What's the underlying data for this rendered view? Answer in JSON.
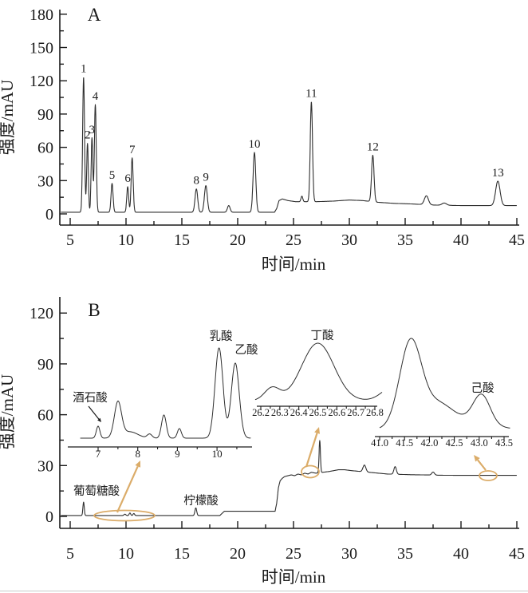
{
  "figure": {
    "background": "#ffffff",
    "trace_color": "#2f2f2f",
    "axis_color": "#1a1a1a",
    "annotation_color": "#dbac69",
    "black_arrow_color": "#1a1a1a"
  },
  "chart_data": [
    {
      "id": "panel-a",
      "type": "line",
      "panel_label": "A",
      "xlabel": "时间/min",
      "ylabel": "强度/mAU",
      "xlim": [
        4.07,
        45.2
      ],
      "ylim": [
        0,
        184
      ],
      "x_ticks": {
        "values": [
          5,
          10,
          15,
          20,
          25,
          30,
          35,
          40,
          45
        ],
        "labels": [
          "5",
          "10",
          "15",
          "20",
          "25",
          "30",
          "35",
          "40",
          "45"
        ],
        "minor_step": 2.5
      },
      "y_ticks": {
        "values": [
          0,
          30,
          60,
          90,
          120,
          150,
          180
        ],
        "labels": [
          "0",
          "30",
          "60",
          "90",
          "120",
          "150",
          "180"
        ],
        "minor_step": 15
      },
      "baseline": [
        [
          4,
          1.5
        ],
        [
          18.9,
          1.5
        ],
        [
          23.3,
          1.5
        ],
        [
          23.5,
          5
        ],
        [
          23.7,
          12
        ],
        [
          24.0,
          13.5
        ],
        [
          24.5,
          12
        ],
        [
          25.2,
          11
        ],
        [
          26.0,
          11
        ],
        [
          27.0,
          11
        ],
        [
          28.5,
          11.5
        ],
        [
          30.0,
          12.5
        ],
        [
          31.2,
          12
        ],
        [
          32.5,
          10.5
        ],
        [
          34,
          9.5
        ],
        [
          35.5,
          9
        ],
        [
          37.5,
          8
        ],
        [
          40,
          7.5
        ],
        [
          45,
          7.5
        ]
      ],
      "peaks": [
        {
          "t": 6.2,
          "h": 122,
          "w": 0.085,
          "label": "1"
        },
        {
          "t": 6.55,
          "h": 62,
          "w": 0.075,
          "label": "2"
        },
        {
          "t": 6.95,
          "h": 67,
          "w": 0.075,
          "label": "3"
        },
        {
          "t": 7.25,
          "h": 97,
          "w": 0.085,
          "label": "4"
        },
        {
          "t": 8.75,
          "h": 26,
          "w": 0.09,
          "label": "5"
        },
        {
          "t": 10.15,
          "h": 23,
          "w": 0.085,
          "label": "6"
        },
        {
          "t": 10.55,
          "h": 49,
          "w": 0.09,
          "label": "7"
        },
        {
          "t": 16.3,
          "h": 21,
          "w": 0.12,
          "label": "8"
        },
        {
          "t": 17.15,
          "h": 24,
          "w": 0.13,
          "label": "9"
        },
        {
          "t": 21.5,
          "h": 54,
          "w": 0.12,
          "label": "10"
        },
        {
          "t": 26.6,
          "h": 90,
          "w": 0.1,
          "label": "11"
        },
        {
          "t": 32.1,
          "h": 42,
          "w": 0.11,
          "label": "12"
        },
        {
          "t": 43.3,
          "h": 22,
          "w": 0.2,
          "label": "13"
        },
        {
          "t": 19.2,
          "h": 6,
          "w": 0.12
        },
        {
          "t": 25.75,
          "h": 5,
          "w": 0.08
        },
        {
          "t": 36.9,
          "h": 8,
          "w": 0.18
        },
        {
          "t": 38.5,
          "h": 2,
          "w": 0.2
        }
      ]
    },
    {
      "id": "panel-b",
      "type": "line",
      "panel_label": "B",
      "xlabel": "时间/min",
      "ylabel": "强度/mAU",
      "xlim": [
        4.07,
        45.2
      ],
      "ylim": [
        0,
        129
      ],
      "x_ticks": {
        "values": [
          5,
          10,
          15,
          20,
          25,
          30,
          35,
          40,
          45
        ],
        "labels": [
          "5",
          "10",
          "15",
          "20",
          "25",
          "30",
          "35",
          "40",
          "45"
        ],
        "minor_step": 2.5
      },
      "y_ticks": {
        "values": [
          0,
          30,
          60,
          90,
          120
        ],
        "labels": [
          "0",
          "30",
          "60",
          "90",
          "120"
        ],
        "minor_step": 15
      },
      "baseline": [
        [
          4,
          0.5
        ],
        [
          18.4,
          0.5
        ],
        [
          18.8,
          3
        ],
        [
          23.35,
          3
        ],
        [
          23.5,
          8
        ],
        [
          23.65,
          17
        ],
        [
          23.8,
          21
        ],
        [
          24.0,
          22.5
        ],
        [
          24.2,
          23.5
        ],
        [
          24.5,
          24
        ],
        [
          24.8,
          24.5
        ],
        [
          25.1,
          24
        ],
        [
          25.4,
          25
        ],
        [
          25.7,
          24.5
        ],
        [
          26.0,
          25.5
        ],
        [
          26.3,
          25
        ],
        [
          26.6,
          26
        ],
        [
          27.0,
          25.5
        ],
        [
          27.6,
          26
        ],
        [
          28.2,
          26.5
        ],
        [
          29.0,
          27.5
        ],
        [
          29.6,
          27.5
        ],
        [
          30.2,
          27
        ],
        [
          31.0,
          26.5
        ],
        [
          31.8,
          26
        ],
        [
          32.6,
          25.5
        ],
        [
          33.4,
          25
        ],
        [
          34.5,
          24.8
        ],
        [
          35.5,
          24.6
        ],
        [
          36.5,
          24.5
        ],
        [
          38,
          24.3
        ],
        [
          40,
          24.2
        ],
        [
          45,
          24.2
        ]
      ],
      "peaks": [
        {
          "t": 6.2,
          "h": 8,
          "w": 0.06
        },
        {
          "t": 9.9,
          "h": 0.8,
          "w": 0.08
        },
        {
          "t": 10.35,
          "h": 1.5,
          "w": 0.07
        },
        {
          "t": 10.7,
          "h": 1.2,
          "w": 0.07
        },
        {
          "t": 16.25,
          "h": 4.5,
          "w": 0.08
        },
        {
          "t": 27.35,
          "h": 19,
          "w": 0.06
        },
        {
          "t": 31.35,
          "h": 4,
          "w": 0.13
        },
        {
          "t": 34.1,
          "h": 4.5,
          "w": 0.11
        },
        {
          "t": 37.5,
          "h": 1.8,
          "w": 0.12
        }
      ],
      "insets": [
        {
          "id": "inset-1",
          "x_ticks": {
            "values": [
              7,
              8,
              9,
              10
            ],
            "labels": [
              "7",
              "8",
              "9",
              "10"
            ],
            "minor_step": 0.5
          },
          "base": 2,
          "range": [
            6.55,
            10.85
          ],
          "peaks": [
            {
              "t": 7.0,
              "h": 15,
              "w": 0.045
            },
            {
              "t": 7.5,
              "h": 44,
              "w": 0.09
            },
            {
              "t": 7.8,
              "h": 8,
              "w": 0.2
            },
            {
              "t": 8.3,
              "h": 5,
              "w": 0.06
            },
            {
              "t": 8.66,
              "h": 29,
              "w": 0.06
            },
            {
              "t": 9.05,
              "h": 12,
              "w": 0.05
            },
            {
              "t": 10.05,
              "h": 113,
              "w": 0.1
            },
            {
              "t": 10.46,
              "h": 94,
              "w": 0.1
            }
          ]
        },
        {
          "id": "inset-2",
          "x_ticks": {
            "values": [
              26.2,
              26.3,
              26.4,
              26.5,
              26.6,
              26.7,
              26.8
            ],
            "labels": [
              "26.2",
              "26.3",
              "26.4",
              "26.5",
              "26.6",
              "26.7",
              "26.8"
            ],
            "minor_step": 0.05
          },
          "base": 3,
          "range": [
            26.17,
            26.84
          ],
          "peaks": [
            {
              "t": 26.26,
              "h": 16,
              "w": 0.04
            },
            {
              "t": 26.5,
              "h": 72,
              "w": 0.085
            },
            {
              "t": 26.9,
              "h": 18,
              "w": 0.06
            }
          ]
        },
        {
          "id": "inset-3",
          "x_ticks": {
            "values": [
              41.0,
              41.5,
              42.0,
              42.5,
              43.0,
              43.5
            ],
            "labels": [
              "41.0",
              "41.5",
              "42.0",
              "42.5",
              "43.0",
              "43.5"
            ],
            "minor_step": 0.25
          },
          "base": 2,
          "range": [
            41.0,
            43.62
          ],
          "peaks": [
            {
              "t": 41.62,
              "h": 108,
              "w": 0.22
            },
            {
              "t": 42.15,
              "h": 24,
              "w": 0.28
            },
            {
              "t": 42.6,
              "h": 12,
              "w": 0.5
            },
            {
              "t": 43.05,
              "h": 36,
              "w": 0.17
            }
          ]
        }
      ],
      "compound_labels": [
        {
          "id": "tartaric-acid",
          "text": "酒石酸"
        },
        {
          "id": "lactic-acid",
          "text": "乳酸"
        },
        {
          "id": "acetic-acid",
          "text": "乙酸"
        },
        {
          "id": "butyric-acid",
          "text": "丁酸"
        },
        {
          "id": "caproic-acid",
          "text": "己酸"
        },
        {
          "id": "gluconic-acid",
          "text": "葡萄糖酸"
        },
        {
          "id": "citric-acid",
          "text": "柠檬酸"
        }
      ]
    }
  ]
}
